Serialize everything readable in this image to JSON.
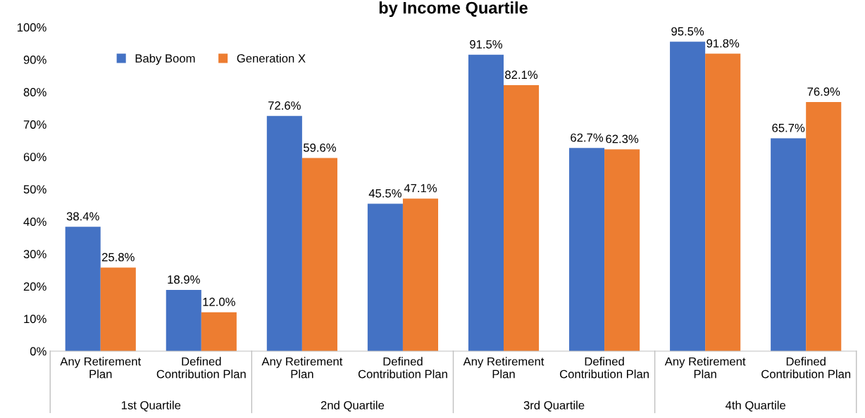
{
  "chart_data": {
    "type": "bar",
    "title": "by Income Quartile",
    "categories": [
      "Any Retirement\nPlan",
      "Defined\nContribution Plan",
      "Any Retirement\nPlan",
      "Defined\nContribution Plan",
      "Any Retirement\nPlan",
      "Defined\nContribution Plan",
      "Any Retirement\nPlan",
      "Defined\nContribution Plan"
    ],
    "series": [
      {
        "name": "Baby Boom",
        "color": "#4472c4",
        "values": [
          38.4,
          18.9,
          72.6,
          45.5,
          91.5,
          62.7,
          95.5,
          65.7
        ],
        "value_labels": [
          "38.4%",
          "18.9%",
          "72.6%",
          "45.5%",
          "91.5%",
          "62.7%",
          "95.5%",
          "65.7%"
        ]
      },
      {
        "name": "Generation X",
        "color": "#ed7d31",
        "values": [
          25.8,
          12.0,
          59.6,
          47.1,
          82.1,
          62.3,
          91.8,
          76.9
        ],
        "value_labels": [
          "25.8%",
          "12.0%",
          "59.6%",
          "47.1%",
          "82.1%",
          "62.3%",
          "91.8%",
          "76.9%"
        ]
      }
    ],
    "ylim": [
      0,
      100
    ],
    "yticks": [
      {
        "value": 0,
        "label": "0%"
      },
      {
        "value": 10,
        "label": "10%"
      },
      {
        "value": 20,
        "label": "20%"
      },
      {
        "value": 30,
        "label": "30%"
      },
      {
        "value": 40,
        "label": "40%"
      },
      {
        "value": 50,
        "label": "50%"
      },
      {
        "value": 60,
        "label": "60%"
      },
      {
        "value": 70,
        "label": "70%"
      },
      {
        "value": 80,
        "label": "80%"
      },
      {
        "value": 90,
        "label": "90%"
      },
      {
        "value": 100,
        "label": "100%"
      }
    ],
    "annotations": [
      "1st Quartile",
      "2nd Quartile",
      "3rd Quartile",
      "4th Quartile"
    ],
    "grid": false,
    "legend": "top left"
  }
}
